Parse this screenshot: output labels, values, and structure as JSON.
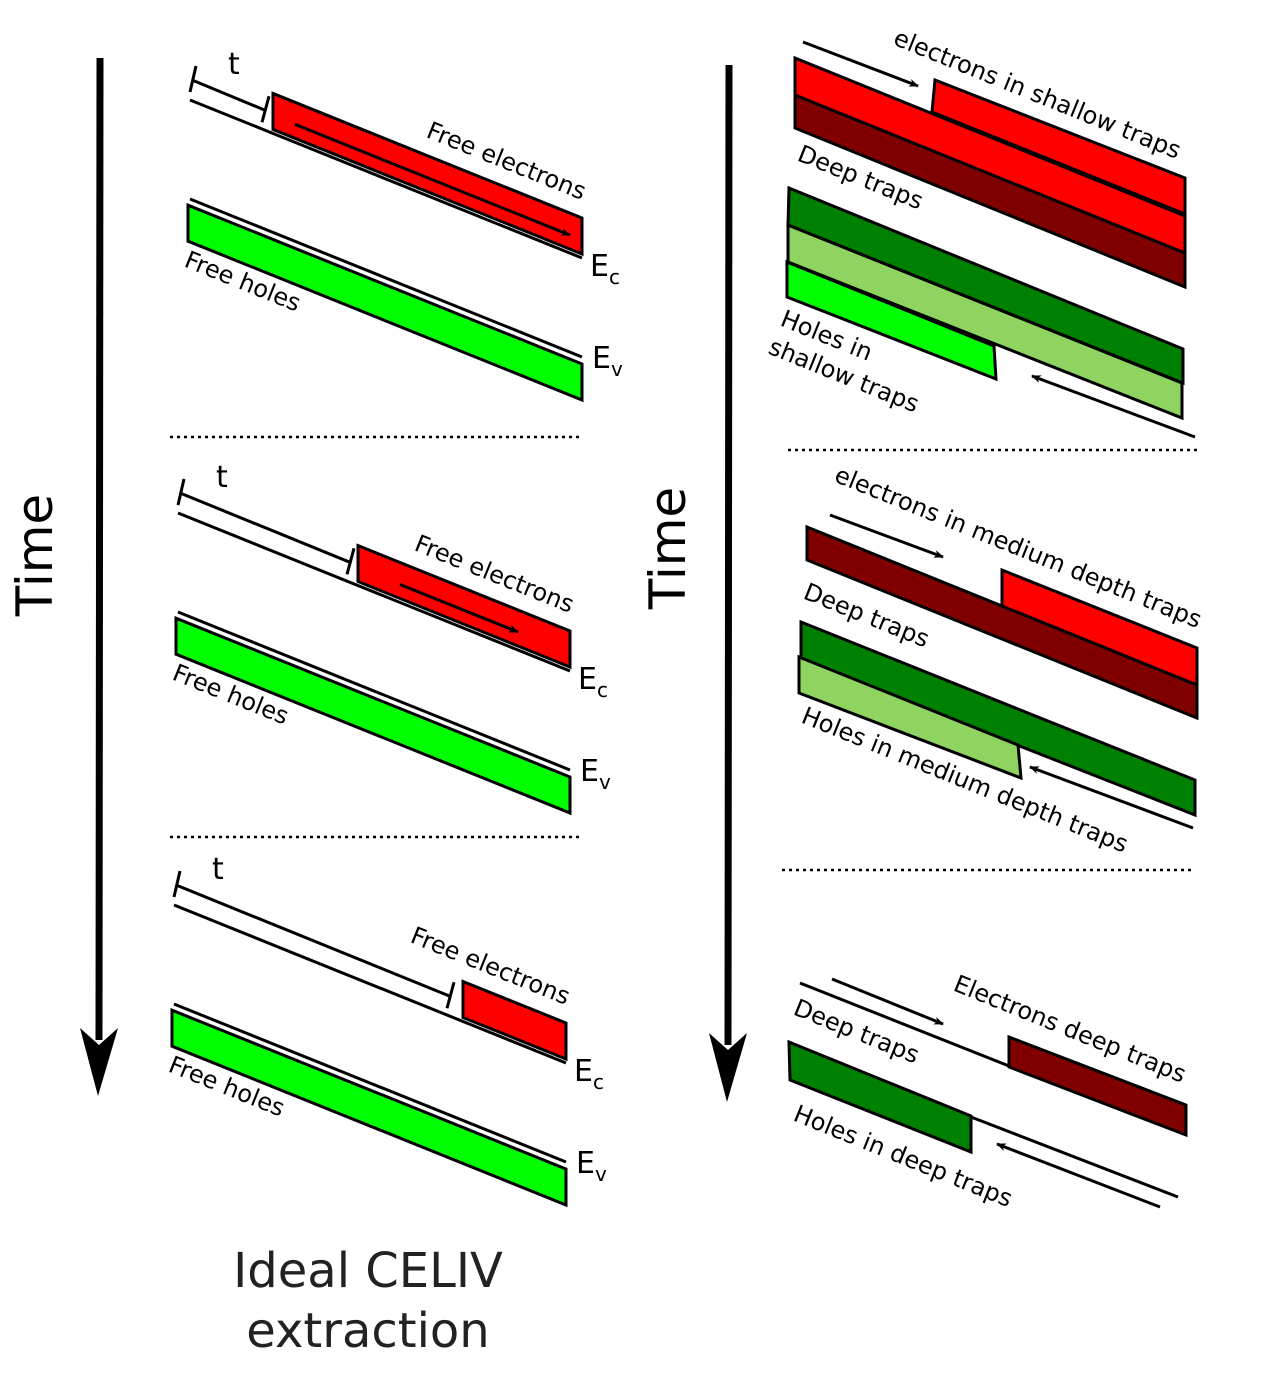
{
  "colors": {
    "free_electrons": "#ff0000",
    "deep_electron_traps": "#800000",
    "free_holes": "#00ff00",
    "deep_hole_traps": "#008000",
    "medium_hole_traps": "#8fd460"
  },
  "left": {
    "time_label": "Time",
    "t_label": "t",
    "free_electrons": "Free electrons",
    "free_holes": "Free holes",
    "ec": "E",
    "ec_sub": "c",
    "ev": "E",
    "ev_sub": "v",
    "caption_line1": "Ideal CELIV",
    "caption_line2": "extraction"
  },
  "right": {
    "time_label": "Time",
    "section1": {
      "electrons": "electrons in shallow traps",
      "deep": "Deep traps",
      "holes_line1": "Holes in",
      "holes_line2": "shallow traps"
    },
    "section2": {
      "electrons": "electrons in medium depth traps",
      "deep": "Deep traps",
      "holes": "Holes in medium depth traps"
    },
    "section3": {
      "electrons": "Electrons deep traps",
      "deep": "Deep traps",
      "holes": "Holes in deep traps"
    }
  }
}
